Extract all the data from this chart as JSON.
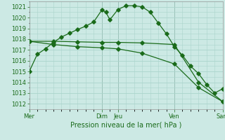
{
  "xlabel": "Pression niveau de la mer( hPa )",
  "ylim": [
    1011.5,
    1021.5
  ],
  "yticks": [
    1012,
    1013,
    1014,
    1015,
    1016,
    1017,
    1018,
    1019,
    1020,
    1021
  ],
  "bg_color": "#cce9e4",
  "grid_color": "#aad4cc",
  "line_color": "#1a6b1a",
  "dark_vline_color": "#556655",
  "x_day_labels": [
    "Mer",
    "Dim",
    "Jeu",
    "Ven",
    "Sam"
  ],
  "x_day_positions": [
    0,
    9,
    11,
    18,
    24
  ],
  "xlim": [
    0,
    24
  ],
  "series1_x": [
    0,
    1,
    2,
    3,
    4,
    5,
    6,
    7,
    8,
    9,
    9.5,
    10,
    11,
    12,
    13,
    14,
    15,
    16,
    17,
    18,
    19,
    20,
    21,
    22,
    23,
    24
  ],
  "series1_y": [
    1015.0,
    1016.6,
    1017.1,
    1017.7,
    1018.2,
    1018.55,
    1018.9,
    1019.2,
    1019.6,
    1020.7,
    1020.5,
    1019.8,
    1020.75,
    1021.1,
    1021.1,
    1021.0,
    1020.5,
    1019.5,
    1018.5,
    1017.3,
    1016.5,
    1015.5,
    1014.8,
    1013.8,
    1013.0,
    1013.4
  ],
  "series2_x": [
    0,
    3,
    6,
    9,
    11,
    14,
    18,
    21,
    24
  ],
  "series2_y": [
    1017.8,
    1017.8,
    1017.75,
    1017.7,
    1017.7,
    1017.65,
    1017.5,
    1014.0,
    1012.2
  ],
  "series3_x": [
    0,
    3,
    6,
    9,
    11,
    14,
    18,
    21,
    24
  ],
  "series3_y": [
    1017.8,
    1017.5,
    1017.3,
    1017.2,
    1017.1,
    1016.7,
    1015.7,
    1013.5,
    1012.2
  ],
  "xlabel_fontsize": 7,
  "ytick_fontsize": 6,
  "xtick_fontsize": 6
}
